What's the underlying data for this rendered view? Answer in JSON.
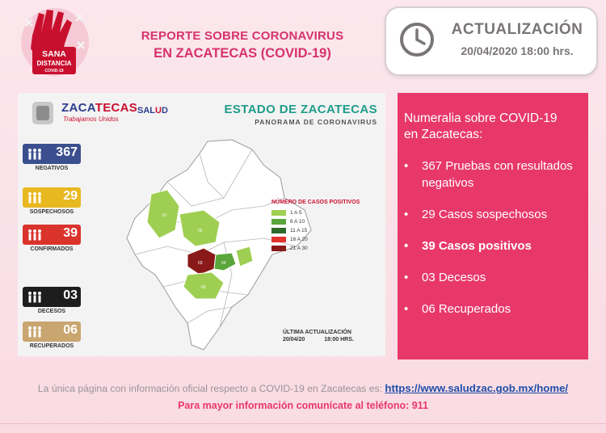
{
  "header": {
    "logo_text_1": "SANA",
    "logo_text_2": "DISTANCIA",
    "logo_text_3": "COVID-19",
    "title_line1": "REPORTE SOBRE CORONAVIRUS",
    "title_line2": "EN ZACATECAS  (COVID-19)"
  },
  "update": {
    "icon": "clock-icon",
    "title": "ACTUALIZACIÓN",
    "date": "20/04/2020 18:00 hrs."
  },
  "infographic": {
    "brand_main": "ZACA",
    "brand_accent": "TECAS",
    "brand_sub": "Trabajamos Unidos",
    "salud_1": "SAL",
    "salud_2": "U",
    "salud_3": "D",
    "state_title": "ESTADO DE ZACATECAS",
    "state_subtitle": "PANORAMA DE CORONAVIRUS",
    "stats": [
      {
        "value": "367",
        "label": "NEGATIVOS",
        "color": "#3b4f8f"
      },
      {
        "value": "29",
        "label": "SOSPECHOSOS",
        "color": "#e8b820"
      },
      {
        "value": "39",
        "label": "CONFIRMADOS",
        "color": "#d9332b"
      },
      {
        "value": "03",
        "label": "DECESOS",
        "color": "#1d1d1d"
      },
      {
        "value": "06",
        "label": "RECUPERADOS",
        "color": "#c9a56f"
      }
    ],
    "legend_title": "NÚMERO DE CASOS POSITIVOS",
    "legend": [
      {
        "label": "1 A 5",
        "color": "#9fcf52"
      },
      {
        "label": "6 A 10",
        "color": "#5aa63a"
      },
      {
        "label": "11 A 15",
        "color": "#2e6b2a"
      },
      {
        "label": "16 A 20",
        "color": "#e0332b"
      },
      {
        "label": "21 A 30",
        "color": "#8a1a1a"
      }
    ],
    "last_update_label": "ÚLTIMA ACTUALIZACIÓN",
    "last_update_date": "20/04/20",
    "last_update_time": "18:00 HRS.",
    "map_labels": [
      "01",
      "02",
      "03",
      "04",
      "05"
    ]
  },
  "numeralia": {
    "title_1": "Numeralia sobre COVID-19",
    "title_2": "en Zacatecas:",
    "items": [
      {
        "text": "367 Pruebas con resultados negativos"
      },
      {
        "text": "29 Casos sospechosos"
      },
      {
        "text": "39 Casos positivos"
      },
      {
        "text": "03 Decesos"
      },
      {
        "text": "06 Recuperados"
      }
    ]
  },
  "footer": {
    "line1": "La única página con información oficial respecto a COVID-19 en Zacatecas es: ",
    "link": "https://www.saludzac.gob.mx/home/",
    "line2": "Para mayor información comunícate al teléfono: 911"
  }
}
